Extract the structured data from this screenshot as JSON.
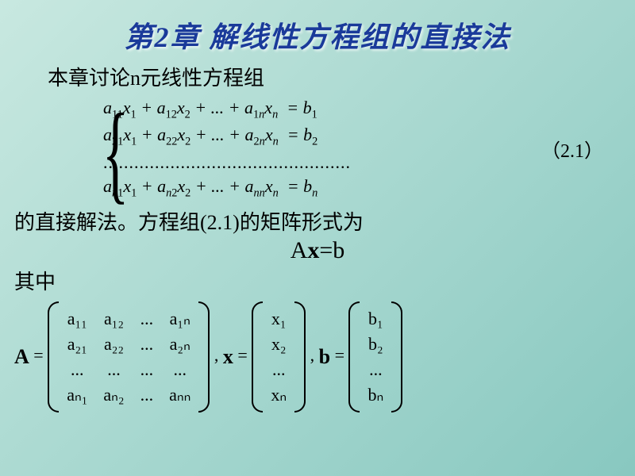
{
  "title": "第2章  解线性方程组的直接法",
  "intro": "本章讨论n元线性方程组",
  "equations": {
    "line1": "a₁₁x₁ + a₁₂x₂ + ... + a₁ₙxₙ = b₁",
    "line2": "a₂₁x₁ + a₂₂x₂ + ... + a₂ₙxₙ = b₂",
    "dots": "................................................",
    "line3": "aₙ₁x₁ + aₙ₂x₂ + ... + aₙₙxₙ = bₙ"
  },
  "eqnum": "（2.1）",
  "text_line": "的直接解法。方程组(2.1)的矩阵形式为",
  "axb_A": "A",
  "axb_x": "x",
  "axb_eq": "=",
  "axb_b": "b",
  "where": "其中",
  "labels": {
    "A": "A",
    "eq": " = ",
    "x": "x",
    "b": "b",
    "comma_x": " , ",
    "comma_b": " , "
  },
  "matrixA": {
    "r1": [
      "a₁₁",
      "a₁₂",
      "...",
      "a₁ₙ"
    ],
    "r2": [
      "a₂₁",
      "a₂₂",
      "...",
      "a₂ₙ"
    ],
    "r3": [
      "...",
      "...",
      "...",
      "..."
    ],
    "r4": [
      "aₙ₁",
      "aₙ₂",
      "...",
      "aₙₙ"
    ]
  },
  "vecX": [
    "x₁",
    "x₂",
    "...",
    "xₙ"
  ],
  "vecB": [
    "b₁",
    "b₂",
    "...",
    "bₙ"
  ],
  "colors": {
    "title": "#1a3a9a",
    "bg_from": "#c8e8e0",
    "bg_to": "#88c8c0",
    "text": "#000000"
  },
  "fonts": {
    "title_size": 36,
    "body_size": 26,
    "math_size": 22
  }
}
